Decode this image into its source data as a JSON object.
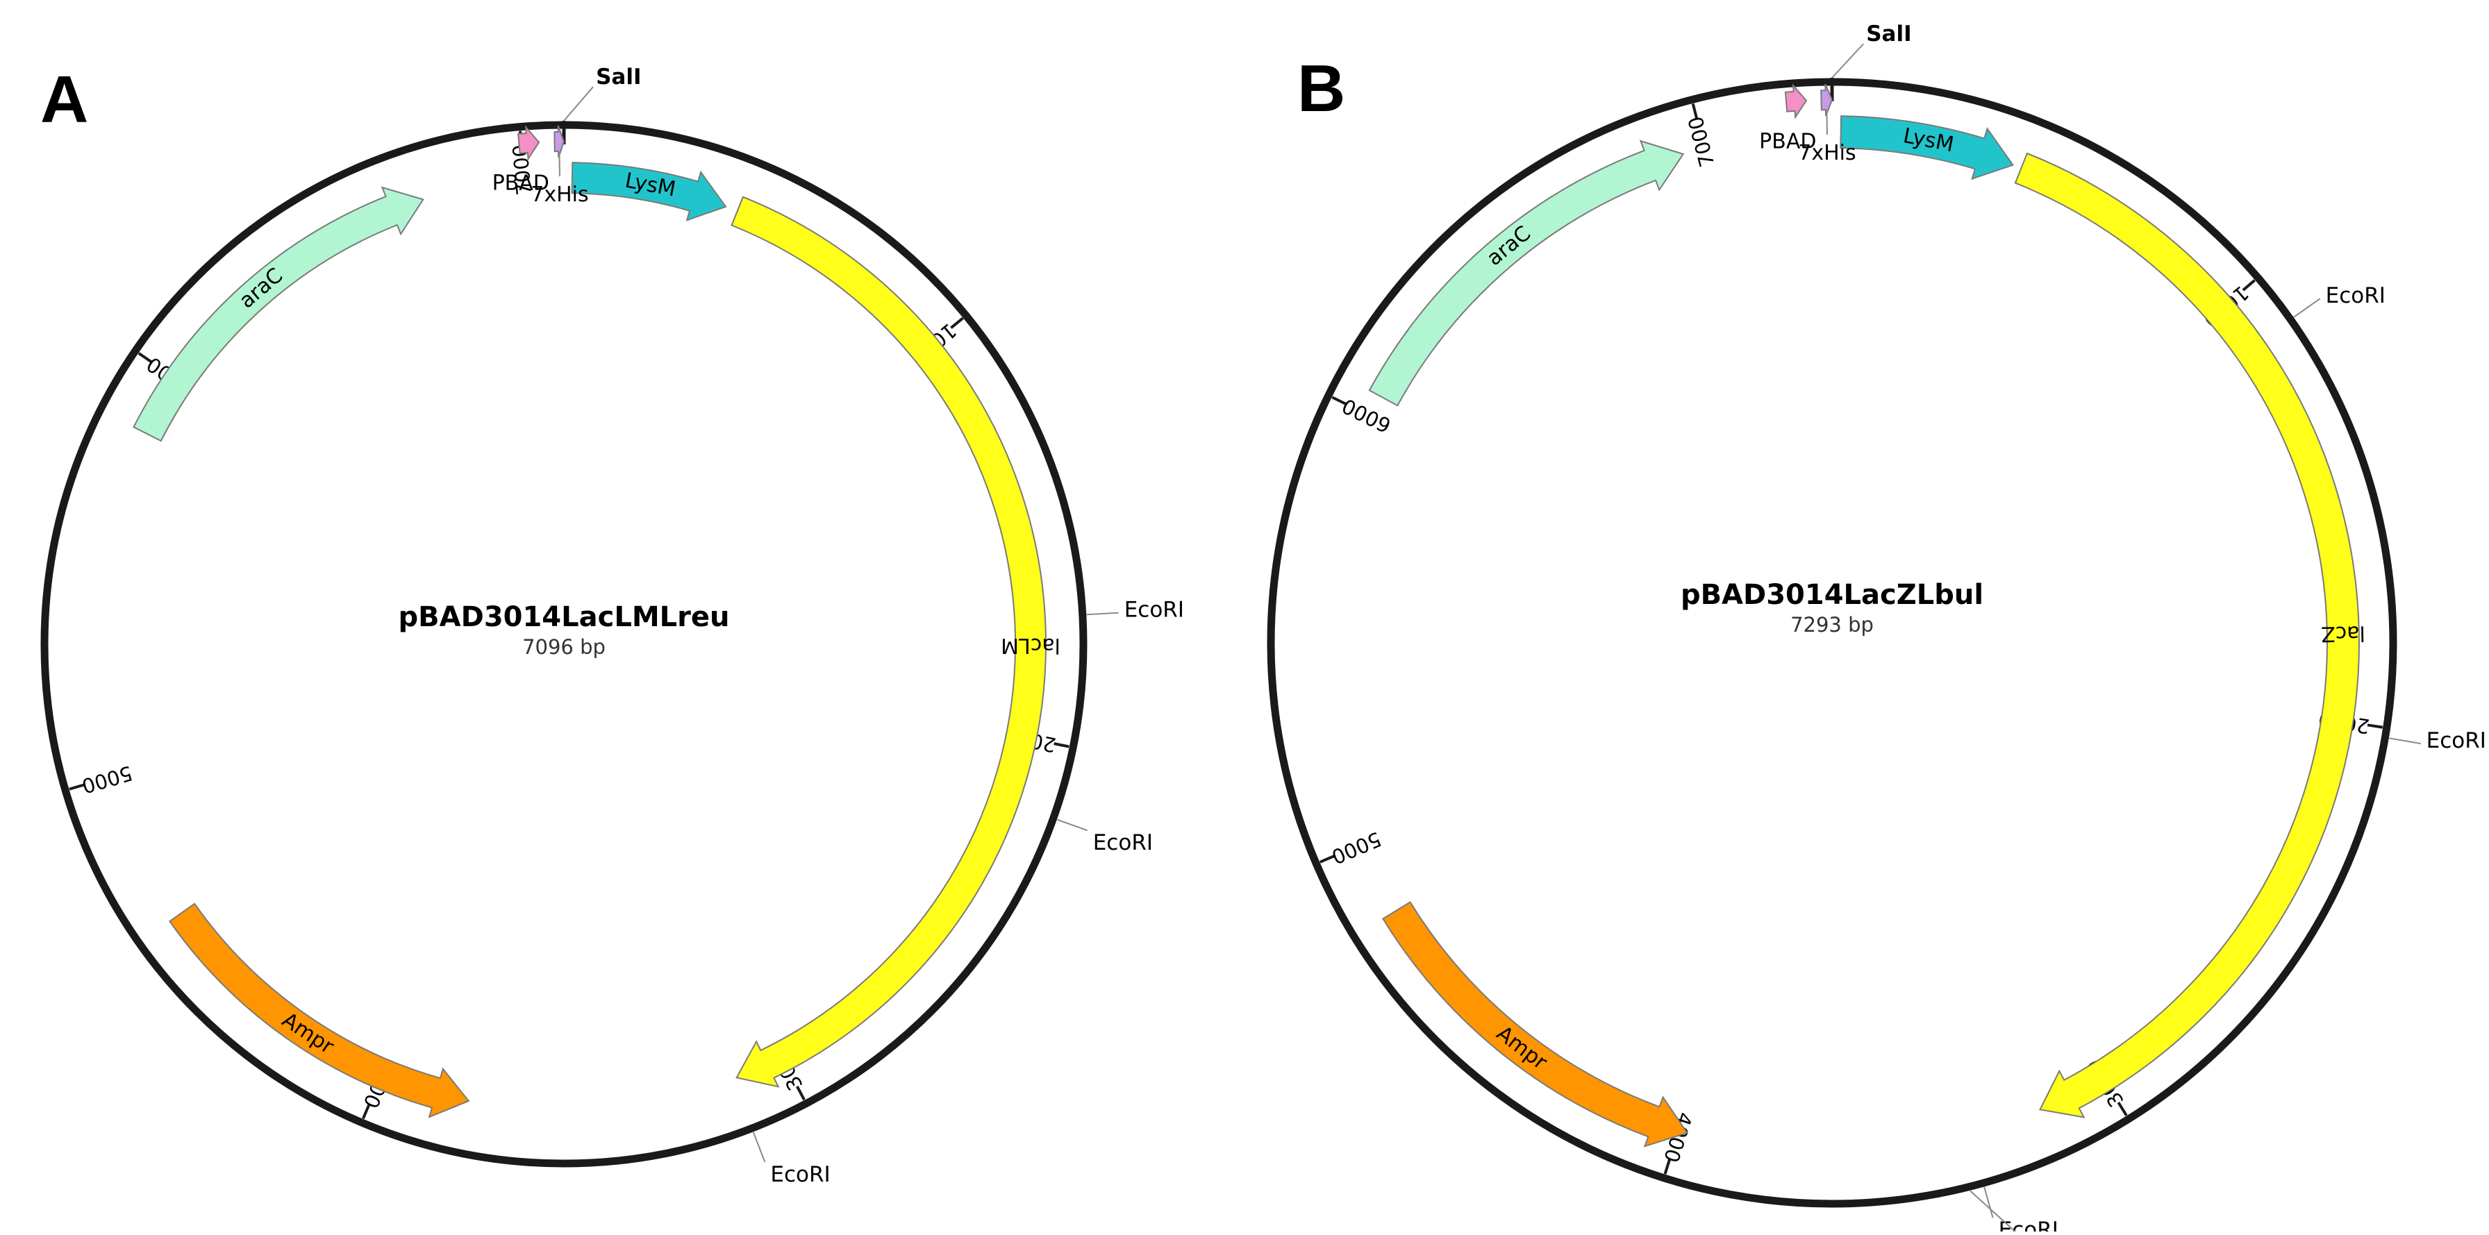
{
  "panels": [
    {
      "letter": "A",
      "name": "pBAD3014LacLMLreu",
      "size_text": "7096 bp",
      "length_bp": 7096,
      "ticks": [
        {
          "bp": 1000,
          "label": "1000"
        },
        {
          "bp": 2000,
          "label": "2000"
        },
        {
          "bp": 3000,
          "label": "3000"
        },
        {
          "bp": 4000,
          "label": "4000"
        },
        {
          "bp": 5000,
          "label": "5000"
        },
        {
          "bp": 6000,
          "label": "6000"
        },
        {
          "bp": 7000,
          "label": "7000"
        }
      ],
      "sites": [
        {
          "name": "SalI",
          "bp": 0,
          "bold": true
        },
        {
          "name": "EcoRI",
          "bp": 1710,
          "bold": false
        },
        {
          "name": "EcoRI",
          "bp": 2160,
          "bold": false
        },
        {
          "name": "EcoRI",
          "bp": 3130,
          "bold": false
        }
      ],
      "features": [
        {
          "name": "LysM",
          "start": 20,
          "end": 400,
          "color": "#22c4cc",
          "strand": 1,
          "label_inside": true
        },
        {
          "name": "lacLM",
          "start": 430,
          "end": 3120,
          "color": "#ffff1a",
          "strand": 1,
          "label_inside": true
        },
        {
          "name": "Ampr",
          "start": 3780,
          "end": 4630,
          "color": "#ff9500",
          "strand": -1,
          "label_inside": true
        },
        {
          "name": "araC",
          "start": 5850,
          "end": 6750,
          "color": "#b2f5d2",
          "strand": 1,
          "label_inside": true
        },
        {
          "name": "PBAD",
          "start": 6995,
          "end": 7040,
          "color": "#f58fc5",
          "strand": 1,
          "label_inside": false
        },
        {
          "name": "7xHis",
          "start": 7075,
          "end": 7096,
          "color": "#c79be6",
          "strand": 1,
          "label_inside": false
        }
      ]
    },
    {
      "letter": "B",
      "name": "pBAD3014LacZLbul",
      "size_text": "7293 bp",
      "length_bp": 7293,
      "ticks": [
        {
          "bp": 1000,
          "label": "1000"
        },
        {
          "bp": 2000,
          "label": "2000"
        },
        {
          "bp": 3000,
          "label": "3000"
        },
        {
          "bp": 4000,
          "label": "4000"
        },
        {
          "bp": 5000,
          "label": "5000"
        },
        {
          "bp": 6000,
          "label": "6000"
        },
        {
          "bp": 7000,
          "label": "7000"
        }
      ],
      "sites": [
        {
          "name": "SalI",
          "bp": 0,
          "bold": true
        },
        {
          "name": "EcoRI",
          "bp": 1110,
          "bold": false
        },
        {
          "name": "EcoRI",
          "bp": 2020,
          "bold": false
        },
        {
          "name": "EcoRI",
          "bp": 3330,
          "bold": false
        },
        {
          "name": "EcoRI",
          "bp": 3360,
          "bold": false
        }
      ],
      "features": [
        {
          "name": "LysM",
          "start": 20,
          "end": 420,
          "color": "#22c4cc",
          "strand": 1,
          "label_inside": true
        },
        {
          "name": "lacZ",
          "start": 440,
          "end": 3160,
          "color": "#ffff1a",
          "strand": 1,
          "label_inside": true
        },
        {
          "name": "Ampr",
          "start": 3980,
          "end": 4830,
          "color": "#ff9500",
          "strand": -1,
          "label_inside": true
        },
        {
          "name": "araC",
          "start": 6050,
          "end": 6950,
          "color": "#b2f5d2",
          "strand": 1,
          "label_inside": true
        },
        {
          "name": "PBAD",
          "start": 7195,
          "end": 7238,
          "color": "#f58fc5",
          "strand": 1,
          "label_inside": false
        },
        {
          "name": "7xHis",
          "start": 7270,
          "end": 7293,
          "color": "#c79be6",
          "strand": 1,
          "label_inside": false
        }
      ]
    }
  ]
}
